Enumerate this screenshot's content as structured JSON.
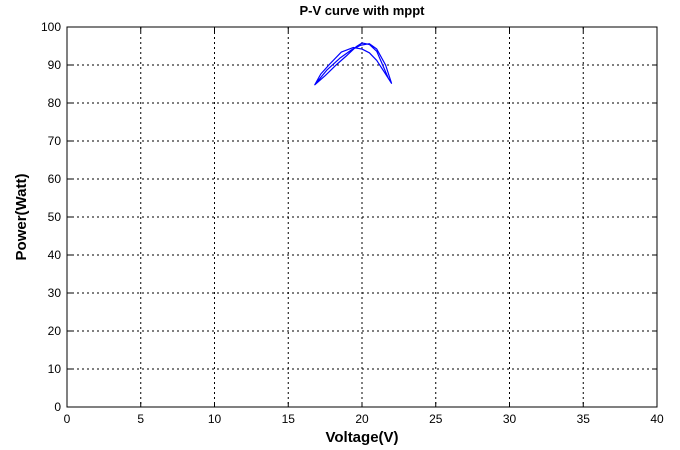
{
  "chart_data": {
    "type": "line",
    "title": "P-V curve with mppt",
    "xlabel": "Voltage(V)",
    "ylabel": "Power(Watt)",
    "xlim": [
      0,
      40
    ],
    "ylim": [
      0,
      100
    ],
    "x_ticks": [
      0,
      5,
      10,
      15,
      20,
      25,
      30,
      35,
      40
    ],
    "y_ticks": [
      0,
      10,
      20,
      30,
      40,
      50,
      60,
      70,
      80,
      90,
      100
    ],
    "grid": true,
    "grid_style": "dotted",
    "line_color": "#0000ff",
    "series": [
      {
        "values": [
          [
            16.8,
            84.8
          ],
          [
            17.5,
            87.2
          ],
          [
            18.3,
            90.2
          ],
          [
            19.0,
            92.6
          ],
          [
            19.6,
            94.8
          ],
          [
            20.0,
            95.8
          ],
          [
            20.5,
            95.4
          ],
          [
            21.0,
            93.6
          ],
          [
            21.4,
            90.0
          ],
          [
            21.8,
            86.4
          ],
          [
            22.0,
            85.2
          ],
          [
            21.5,
            88.2
          ],
          [
            21.0,
            91.2
          ],
          [
            20.5,
            93.2
          ],
          [
            20.0,
            94.2
          ],
          [
            19.4,
            94.6
          ],
          [
            18.6,
            93.4
          ],
          [
            17.8,
            90.2
          ],
          [
            17.2,
            87.6
          ],
          [
            16.8,
            84.8
          ],
          [
            17.6,
            88.6
          ],
          [
            18.5,
            91.8
          ],
          [
            19.3,
            94.0
          ],
          [
            19.9,
            95.2
          ],
          [
            20.5,
            95.6
          ],
          [
            21.0,
            94.2
          ],
          [
            21.6,
            90.0
          ],
          [
            22.0,
            85.2
          ]
        ]
      }
    ]
  }
}
